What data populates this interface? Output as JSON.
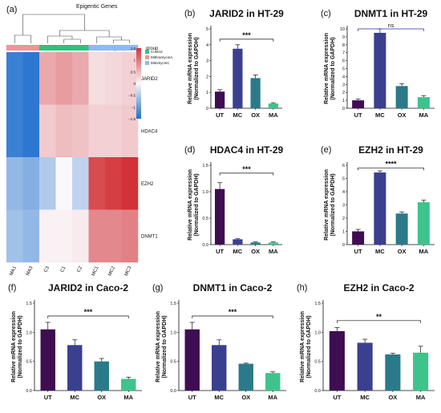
{
  "heatmap": {
    "label": "(a)",
    "title": "Epigentic Genes",
    "group_header_top": "group",
    "legend_title": "group",
    "legend_entries": [
      {
        "name": "Control",
        "color": "#2ec27e"
      },
      {
        "name": "MithramycinA",
        "color": "#f09595"
      },
      {
        "name": "MitomycinC",
        "color": "#8fb9f0"
      }
    ],
    "scale_ticks": [
      "1.5",
      "1",
      "0.5",
      "0",
      "−0.5",
      "−1",
      "−1.5"
    ],
    "scale_values": [
      1.5,
      1,
      0.5,
      0,
      -0.5,
      -1,
      -1.5
    ],
    "rows": [
      "JARID2",
      "HDAC4",
      "EZH2",
      "DNMT1"
    ],
    "columns": [
      "MA1",
      "MA3",
      "C3",
      "C1",
      "C2",
      "MC1",
      "MC2",
      "MC3"
    ],
    "column_groups": [
      "MithramycinA",
      "MithramycinA",
      "Control",
      "Control",
      "Control",
      "MitomycinC",
      "MitomycinC",
      "MitomycinC"
    ],
    "values": [
      [
        -1.3,
        -1.4,
        0.6,
        0.7,
        0.6,
        0.2,
        0.25,
        0.3
      ],
      [
        -1.3,
        -1.4,
        0.35,
        0.45,
        0.4,
        0.3,
        0.3,
        0.35
      ],
      [
        -0.7,
        -0.8,
        -0.5,
        0.0,
        -0.4,
        1.3,
        1.4,
        1.5
      ],
      [
        -0.6,
        -0.7,
        0.05,
        0.05,
        0.1,
        0.85,
        0.85,
        0.9
      ]
    ]
  },
  "chart_data": [
    {
      "label": "(b)",
      "type": "bar",
      "title": "JARID2 in HT-29",
      "ylabel": "Relative mRNA expression (Normalized to GAPDH)",
      "categories": [
        "UT",
        "MC",
        "OX",
        "MA"
      ],
      "values": [
        1.05,
        3.75,
        1.9,
        0.3
      ],
      "errors": [
        0.12,
        0.25,
        0.2,
        0.05
      ],
      "ylim": [
        0,
        5
      ],
      "yticks": [
        0,
        1,
        2,
        3,
        4,
        5
      ],
      "tick_labels": [
        "0",
        "1",
        "2",
        "3",
        "4",
        "5"
      ],
      "bracket_from": "UT",
      "bracket_to": "MA",
      "significance": "***",
      "bracket_y": 4.35,
      "bracket_color": "#111111"
    },
    {
      "label": "(c)",
      "type": "bar",
      "title": "DNMT1 in HT-29",
      "ylabel": "Relative mRNA expression (Normalized to GAPDH)",
      "categories": [
        "UT",
        "MC",
        "OX",
        "MA"
      ],
      "values": [
        1.0,
        9.5,
        2.8,
        1.4
      ],
      "errors": [
        0.15,
        0.5,
        0.3,
        0.2
      ],
      "ylim": [
        0,
        10
      ],
      "yticks": [
        0,
        1,
        2,
        3,
        4,
        5,
        6,
        7,
        8,
        9,
        10
      ],
      "tick_labels": [
        "0",
        "1",
        "2",
        "3",
        "4",
        "5",
        "6",
        "7",
        "8",
        "9",
        "10"
      ],
      "bracket_from": "UT",
      "bracket_to": "MA",
      "significance": "ns",
      "bracket_y": 10.0,
      "bracket_color": "#1f2f9e"
    },
    {
      "label": "(d)",
      "type": "bar",
      "title": "HDAC4 in HT-29",
      "ylabel": "Relative mRNA expression (Normalized to GAPDH)",
      "categories": [
        "UT",
        "MC",
        "OX",
        "MA"
      ],
      "values": [
        1.05,
        0.1,
        0.04,
        0.04
      ],
      "errors": [
        0.12,
        0.01,
        0.01,
        0.01
      ],
      "ylim": [
        0,
        1.5
      ],
      "yticks": [
        0,
        0.5,
        1.0,
        1.5
      ],
      "tick_labels": [
        "0.0",
        "0.5",
        "1.0",
        "1.5"
      ],
      "bracket_from": "UT",
      "bracket_to": "MA",
      "significance": "***",
      "bracket_y": 1.35,
      "bracket_color": "#111111"
    },
    {
      "label": "(e)",
      "type": "bar",
      "title": "EZH2 in HT-29",
      "ylabel": "Relative mRNA expression (Normalized to GAPDH)",
      "categories": [
        "UT",
        "MC",
        "OX",
        "MA"
      ],
      "values": [
        1.0,
        5.45,
        2.35,
        3.2
      ],
      "errors": [
        0.15,
        0.12,
        0.12,
        0.15
      ],
      "ylim": [
        0,
        6
      ],
      "yticks": [
        0,
        1,
        2,
        3,
        4,
        5,
        6
      ],
      "tick_labels": [
        "0",
        "1",
        "2",
        "3",
        "4",
        "5",
        "6"
      ],
      "bracket_from": "UT",
      "bracket_to": "MA",
      "significance": "****",
      "bracket_y": 5.8,
      "bracket_color": "#111111"
    },
    {
      "label": "(f)",
      "type": "bar",
      "title": "JARID2 in Caco-2",
      "ylabel": "Relative mRNA expression (Normalized to GAPDH)",
      "categories": [
        "UT",
        "MC",
        "OX",
        "MA"
      ],
      "values": [
        1.05,
        0.78,
        0.5,
        0.2
      ],
      "errors": [
        0.12,
        0.09,
        0.05,
        0.03
      ],
      "ylim": [
        0,
        1.5
      ],
      "yticks": [
        0,
        0.5,
        1.0,
        1.5
      ],
      "tick_labels": [
        "0.0",
        "0.5",
        "1.0",
        "1.5"
      ],
      "bracket_from": "UT",
      "bracket_to": "MA",
      "significance": "***",
      "bracket_y": 1.28,
      "bracket_color": "#111111"
    },
    {
      "label": "(g)",
      "type": "bar",
      "title": "DNMT1 in Caco-2",
      "ylabel": "Relative mRNA expression (Normalized to GAPDH)",
      "categories": [
        "UT",
        "MC",
        "OX",
        "MA"
      ],
      "values": [
        1.05,
        0.78,
        0.46,
        0.3
      ],
      "errors": [
        0.12,
        0.09,
        0.01,
        0.02
      ],
      "ylim": [
        0,
        1.5
      ],
      "yticks": [
        0,
        0.5,
        1.0,
        1.5
      ],
      "tick_labels": [
        "0.0",
        "0.5",
        "1.0",
        "1.5"
      ],
      "bracket_from": "UT",
      "bracket_to": "MA",
      "significance": "***",
      "bracket_y": 1.28,
      "bracket_color": "#111111"
    },
    {
      "label": "(h)",
      "type": "bar",
      "title": "EZH2 in Caco-2",
      "ylabel": "Relative mRNA expression (Normalized to GAPDH)",
      "categories": [
        "UT",
        "MC",
        "OX",
        "MA"
      ],
      "values": [
        1.02,
        0.82,
        0.62,
        0.65
      ],
      "errors": [
        0.06,
        0.06,
        0.02,
        0.11
      ],
      "ylim": [
        0,
        1.5
      ],
      "yticks": [
        0,
        0.5,
        1.0,
        1.5
      ],
      "tick_labels": [
        "0.0",
        "0.5",
        "1.0",
        "1.5"
      ],
      "bracket_from": "UT",
      "bracket_to": "MA",
      "significance": "**",
      "bracket_y": 1.2,
      "bracket_color": "#111111"
    }
  ],
  "bar_colors": [
    "#3f0d52",
    "#3a3f8f",
    "#2a7a8a",
    "#3ec38c"
  ]
}
